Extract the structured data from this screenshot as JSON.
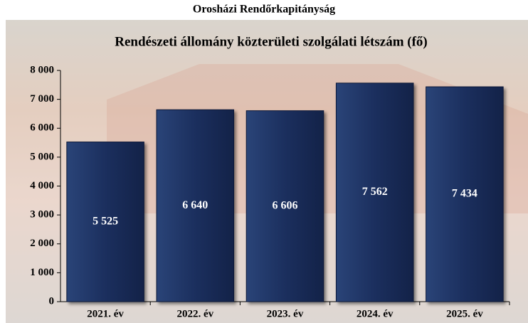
{
  "chart_data": {
    "type": "bar",
    "title": "Orosházi Rendőrkapitányság",
    "subtitle": "Rendészeti állomány közterületi szolgálati létszám (fő)",
    "categories": [
      "2021. év",
      "2022. év",
      "2023. év",
      "2024. év",
      "2025. év"
    ],
    "values": [
      5525,
      6640,
      6606,
      7562,
      7434
    ],
    "value_labels": [
      "5 525",
      "6 640",
      "6 606",
      "7 562",
      "7 434"
    ],
    "color": "#1b2f5e",
    "ylim": [
      0,
      8000
    ],
    "yticks": [
      0,
      {
        "value": 1000,
        "label": "1 000"
      },
      {
        "value": 2000,
        "label": "2 000"
      },
      {
        "value": 3000,
        "label": "3 000"
      },
      {
        "value": 4000,
        "label": "4 000"
      },
      {
        "value": 5000,
        "label": "5 000"
      },
      {
        "value": 6000,
        "label": "6 000"
      },
      {
        "value": 7000,
        "label": "7 000"
      },
      {
        "value": 8000,
        "label": "8 000"
      }
    ]
  }
}
